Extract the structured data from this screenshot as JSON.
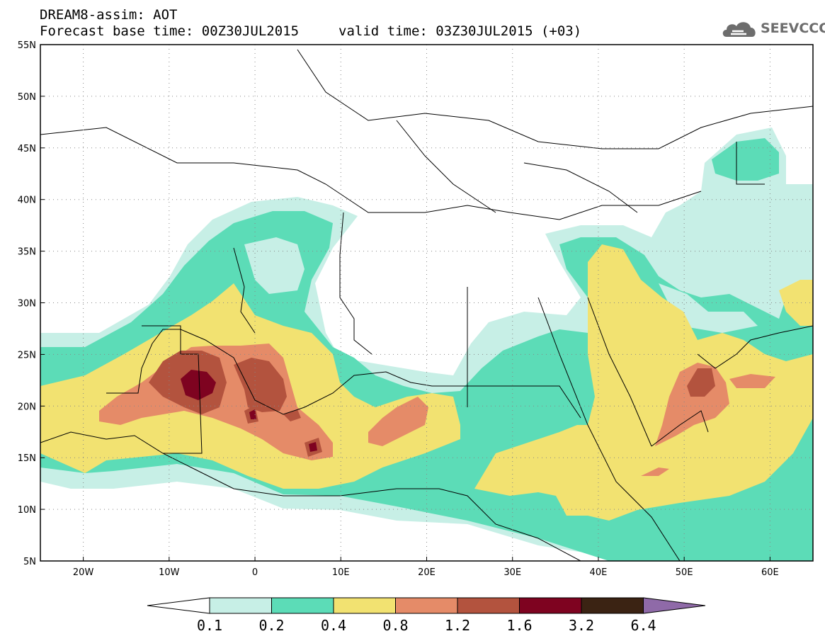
{
  "header": {
    "title": "DREAM8-assim: AOT",
    "forecast_base": "Forecast base time: 00Z30JUL2015",
    "valid_time": "valid time: 03Z30JUL2015 (+03)"
  },
  "logo": {
    "text": "SEEVCCC",
    "icon": "cloud-logo-icon"
  },
  "map": {
    "projection": "lat-lon",
    "lat_range": [
      5,
      55
    ],
    "lon_range": [
      -25,
      65
    ],
    "lat_labels": [
      "55N",
      "50N",
      "45N",
      "40N",
      "35N",
      "30N",
      "25N",
      "20N",
      "15N",
      "10N",
      "5N"
    ],
    "lon_labels": [
      "20W",
      "10W",
      "0",
      "10E",
      "20E",
      "30E",
      "40E",
      "50E",
      "60E"
    ],
    "grid": true,
    "variable": "Aerosol optical thickness"
  },
  "colorbar": {
    "levels": [
      "0.1",
      "0.2",
      "0.4",
      "0.8",
      "1.2",
      "1.6",
      "3.2",
      "6.4"
    ],
    "colors": [
      "#c7efe6",
      "#5cdcb7",
      "#f2e271",
      "#e58b68",
      "#b3533e",
      "#7e0320",
      "#3b2313",
      "#8f6aa8"
    ],
    "under_color": "#ffffff"
  }
}
